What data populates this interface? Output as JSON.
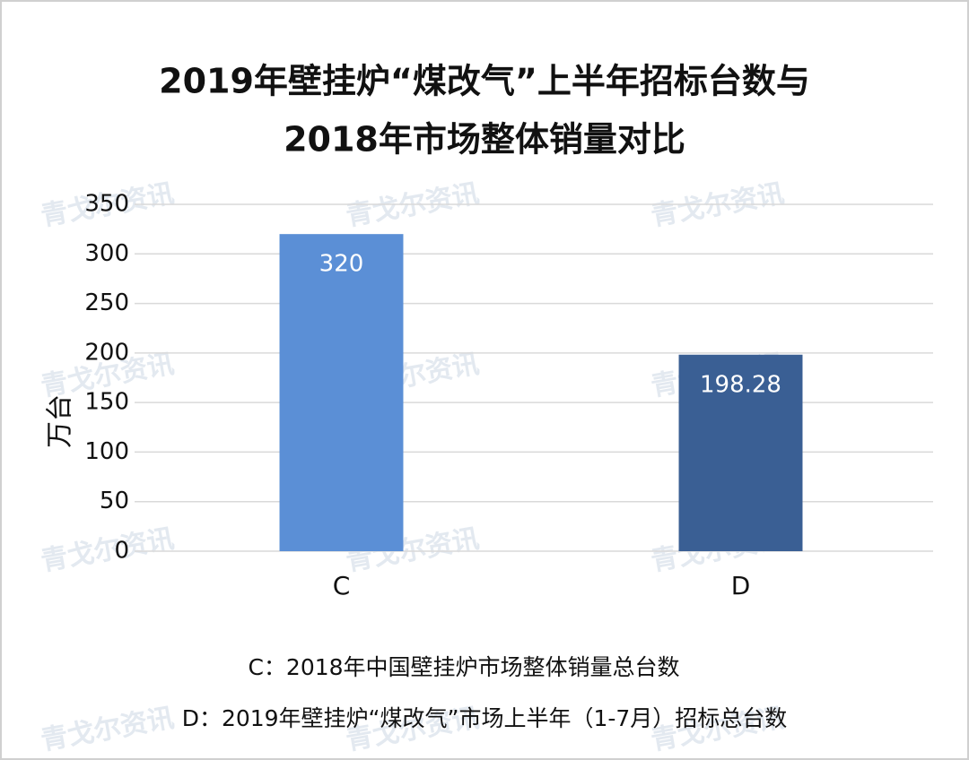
{
  "chart_data": {
    "type": "bar",
    "title": [
      "2019年壁挂炉“煤改气”上半年招标台数与",
      "2018年市场整体销量对比"
    ],
    "y_label": "万台",
    "categories": [
      "C",
      "D"
    ],
    "values": [
      320,
      198.28
    ],
    "colors": [
      "#5b8fd6",
      "#3a5f94"
    ],
    "ylim": [
      0,
      350
    ],
    "yticks": [
      0,
      50,
      100,
      150,
      200,
      250,
      300,
      350
    ],
    "grid": true,
    "notes": [
      "C：2018年中国壁挂炉市场整体销量总台数",
      "D：2019年壁挂炉“煤改气”市场上半年（1-7月）招标总台数"
    ],
    "watermark": "青戈尔资讯"
  }
}
